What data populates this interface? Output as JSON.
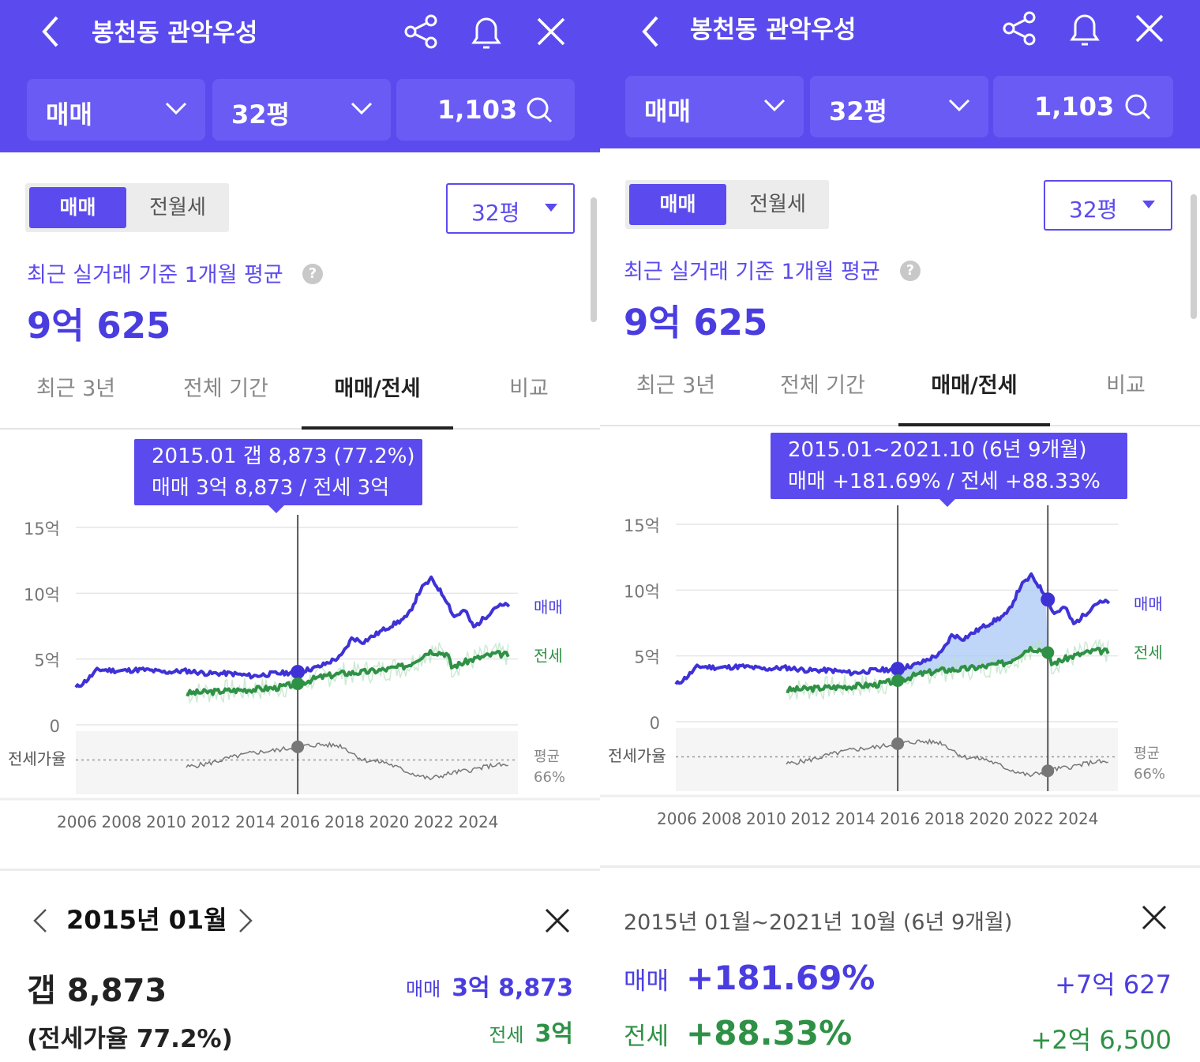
{
  "colors": {
    "brand": "#5b4bee",
    "sale": "#4a3de0",
    "jeonse": "#2e9145"
  },
  "header": {
    "title": "봉천동 관악우성",
    "back_icon": "chevron-left-icon",
    "share_icon": "share-icon",
    "bell_icon": "bell-icon",
    "close_icon": "close-icon",
    "deal_type": "매매",
    "area": "32평",
    "count": "1,103"
  },
  "filters": {
    "seg_on": "매매",
    "seg_off": "전월세",
    "area": "32평"
  },
  "summary": {
    "avg_label": "최근 실거래 기준 1개월 평균",
    "help": "?",
    "avg_value": "9억 625"
  },
  "tabs": [
    {
      "label": "최근 3년"
    },
    {
      "label": "전체 기간"
    },
    {
      "label": "매매/전세"
    },
    {
      "label": "비교"
    }
  ],
  "active_tab": "매매/전세",
  "chart_data": {
    "type": "line",
    "y_ticks": [
      "15억",
      "10억",
      "5억",
      "0"
    ],
    "ylim": [
      0,
      15
    ],
    "x_ticks": [
      "2006",
      "2008",
      "2010",
      "2012",
      "2014",
      "2016",
      "2018",
      "2020",
      "2022",
      "2024"
    ],
    "xlim": [
      2005,
      2025
    ],
    "ratio_label": "전세가율",
    "ratio_avg": [
      "평균",
      "66%"
    ],
    "series": [
      {
        "name": "매매",
        "x": [
          2005,
          2005.5,
          2006,
          2007,
          2008,
          2009,
          2010,
          2011,
          2012,
          2013,
          2014,
          2015,
          2016,
          2017,
          2017.5,
          2018,
          2019,
          2020,
          2020.6,
          2021.1,
          2021.8,
          2022.1,
          2022.6,
          2023,
          2023.6,
          2024,
          2024.6
        ],
        "values": [
          2.8,
          3.4,
          4.2,
          4.1,
          4.2,
          4.0,
          4.1,
          3.9,
          3.9,
          3.7,
          3.9,
          4.0,
          4.4,
          5.2,
          6.6,
          6.3,
          7.3,
          8.2,
          10.3,
          11.1,
          9.4,
          8.2,
          8.7,
          7.4,
          8.3,
          9.0,
          9.1
        ]
      },
      {
        "name": "전세",
        "x": [
          2010,
          2011,
          2012,
          2013,
          2014,
          2015,
          2016,
          2017,
          2018,
          2019,
          2020,
          2021,
          2021.8,
          2022,
          2023,
          2024,
          2024.6
        ],
        "values": [
          2.4,
          2.5,
          2.6,
          2.7,
          2.8,
          3.1,
          3.6,
          3.9,
          4.0,
          4.2,
          4.5,
          5.6,
          5.4,
          4.4,
          5.0,
          5.4,
          5.3
        ]
      },
      {
        "name": "전세가율",
        "x": [
          2010,
          2011,
          2012,
          2013,
          2014,
          2015,
          2016,
          2017,
          2018,
          2019,
          2020,
          2021,
          2022,
          2023,
          2024,
          2024.6
        ],
        "values": [
          60,
          63,
          68,
          72,
          74,
          77,
          79,
          78,
          66,
          64,
          56,
          50,
          55,
          58,
          62,
          61
        ]
      }
    ]
  },
  "left": {
    "tooltip": {
      "line1": "2015.01  갭 8,873 (77.2%)",
      "line2": "매매 3억 8,873 / 전세 3억"
    },
    "marker_x": 2015.04,
    "detail": {
      "month": "2015년 01월",
      "gap": "갭 8,873",
      "gap_rate": "(전세가율 77.2%)",
      "sale_label": "매매",
      "sale_value": "3억 8,873",
      "jeonse_label": "전세",
      "jeonse_value": "3억"
    }
  },
  "right": {
    "tooltip": {
      "line1": "2015.01~2021.10 (6년 9개월)",
      "line2": "매매 +181.69%  /  전세 +88.33%"
    },
    "range_x": [
      2015.04,
      2021.83
    ],
    "detail": {
      "range": "2015년 01월~2021년 10월 (6년 9개월)",
      "sale_label": "매매",
      "sale_pct": "+181.69%",
      "sale_amt": "+7억 627",
      "jeonse_label": "전세",
      "jeonse_pct": "+88.33%",
      "jeonse_amt": "+2억 6,500"
    }
  }
}
